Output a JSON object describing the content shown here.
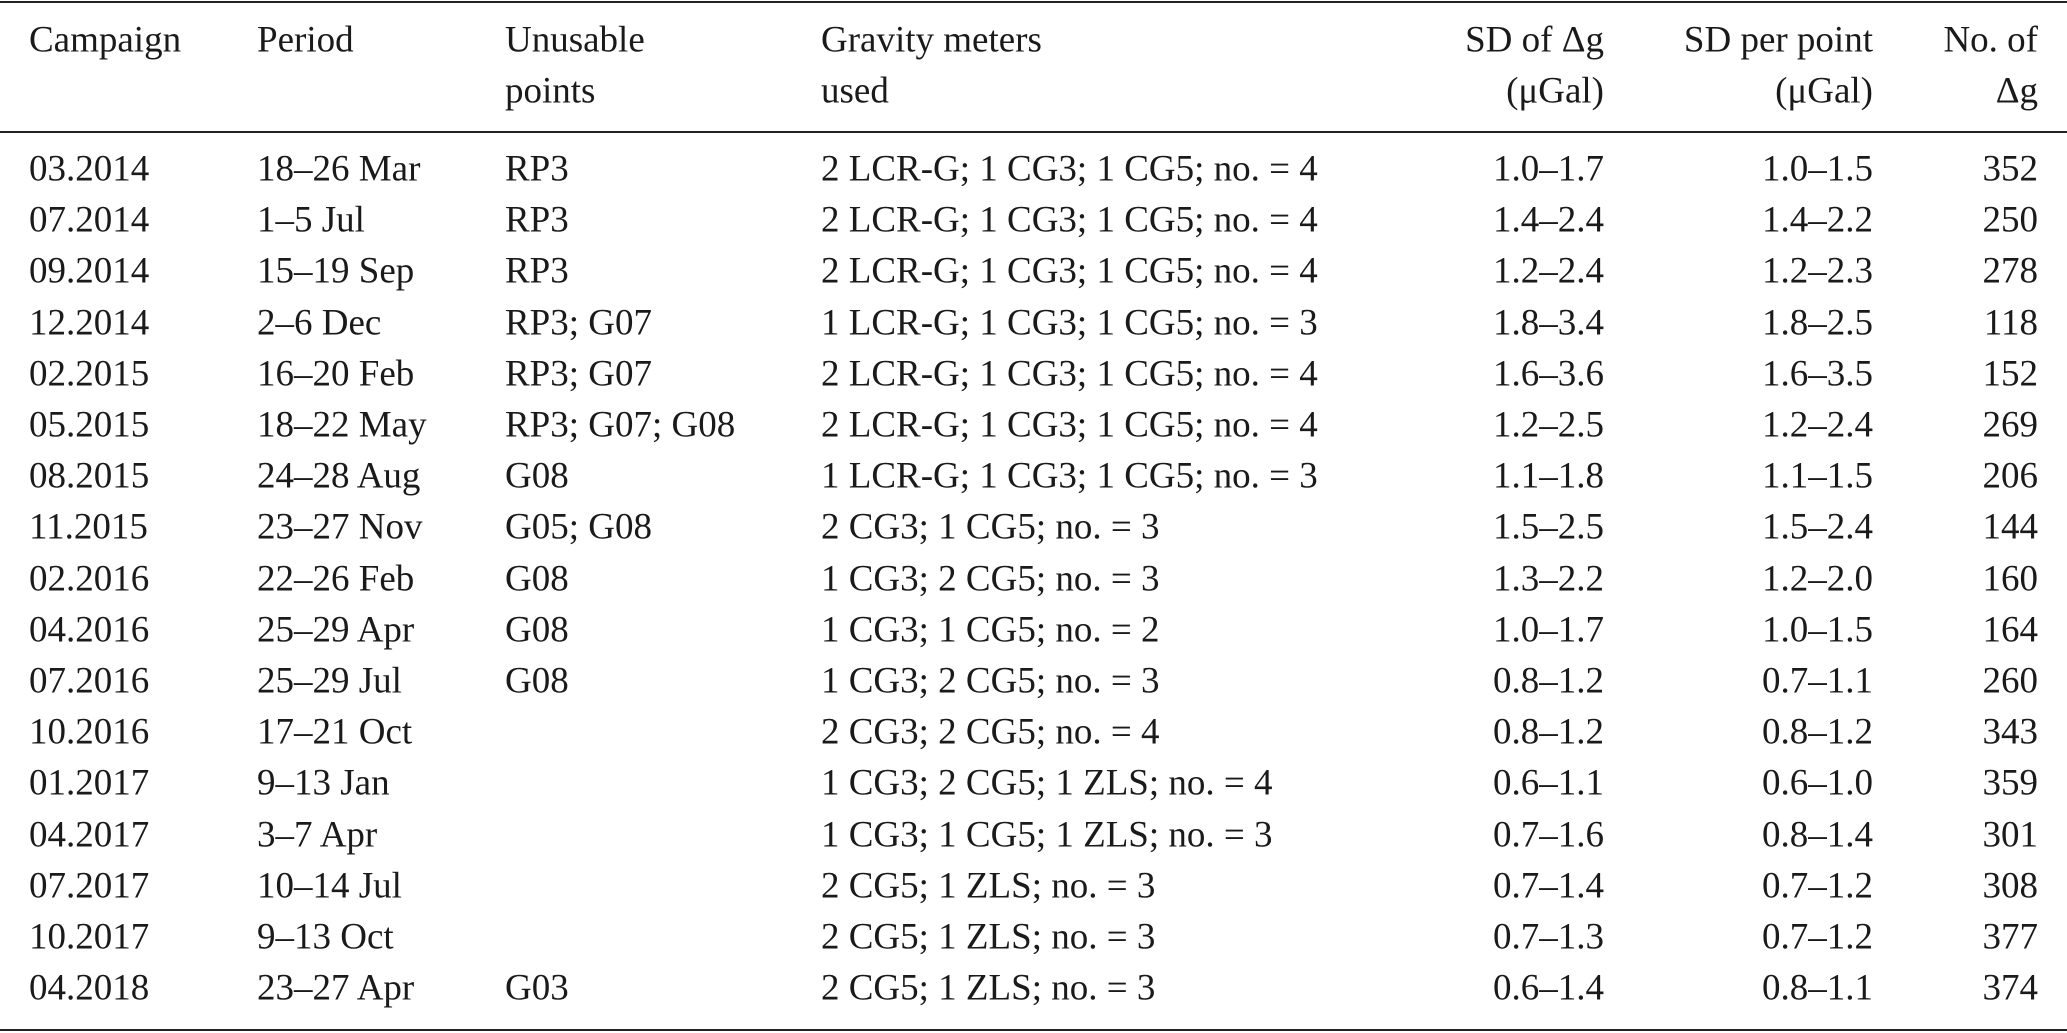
{
  "table": {
    "header": [
      [
        "Campaign"
      ],
      [
        "Period"
      ],
      [
        "Unusable",
        "points"
      ],
      [
        "Gravity meters",
        "used"
      ],
      [
        "SD of Δg",
        "(μGal)"
      ],
      [
        "SD per point",
        "(μGal)"
      ],
      [
        "No. of",
        "Δg"
      ]
    ],
    "rows": [
      [
        "03.2014",
        "18–26 Mar",
        "RP3",
        "2 LCR-G; 1 CG3; 1 CG5; no. = 4",
        "1.0–1.7",
        "1.0–1.5",
        "352"
      ],
      [
        "07.2014",
        "1–5 Jul",
        "RP3",
        "2 LCR-G; 1 CG3; 1 CG5; no. = 4",
        "1.4–2.4",
        "1.4–2.2",
        "250"
      ],
      [
        "09.2014",
        "15–19 Sep",
        "RP3",
        "2 LCR-G; 1 CG3; 1 CG5; no. = 4",
        "1.2–2.4",
        "1.2–2.3",
        "278"
      ],
      [
        "12.2014",
        "2–6 Dec",
        "RP3; G07",
        "1 LCR-G; 1 CG3; 1 CG5; no. = 3",
        "1.8–3.4",
        "1.8–2.5",
        "118"
      ],
      [
        "02.2015",
        "16–20 Feb",
        "RP3; G07",
        "2 LCR-G; 1 CG3; 1 CG5; no. = 4",
        "1.6–3.6",
        "1.6–3.5",
        "152"
      ],
      [
        "05.2015",
        "18–22 May",
        "RP3; G07; G08",
        "2 LCR-G; 1 CG3; 1 CG5; no. = 4",
        "1.2–2.5",
        "1.2–2.4",
        "269"
      ],
      [
        "08.2015",
        "24–28 Aug",
        "G08",
        "1 LCR-G; 1 CG3; 1 CG5; no. = 3",
        "1.1–1.8",
        "1.1–1.5",
        "206"
      ],
      [
        "11.2015",
        "23–27 Nov",
        "G05; G08",
        "2 CG3; 1 CG5; no. = 3",
        "1.5–2.5",
        "1.5–2.4",
        "144"
      ],
      [
        "02.2016",
        "22–26 Feb",
        "G08",
        "1 CG3; 2 CG5; no. = 3",
        "1.3–2.2",
        "1.2–2.0",
        "160"
      ],
      [
        "04.2016",
        "25–29 Apr",
        "G08",
        "1 CG3; 1 CG5; no. = 2",
        "1.0–1.7",
        "1.0–1.5",
        "164"
      ],
      [
        "07.2016",
        "25–29 Jul",
        "G08",
        "1 CG3; 2 CG5; no. = 3",
        "0.8–1.2",
        "0.7–1.1",
        "260"
      ],
      [
        "10.2016",
        "17–21 Oct",
        null,
        "2 CG3; 2 CG5; no. = 4",
        "0.8–1.2",
        "0.8–1.2",
        "343"
      ],
      [
        "01.2017",
        "9–13 Jan",
        null,
        "1 CG3; 2 CG5; 1 ZLS; no. = 4",
        "0.6–1.1",
        "0.6–1.0",
        "359"
      ],
      [
        "04.2017",
        "3–7 Apr",
        null,
        "1 CG3; 1 CG5; 1 ZLS; no. = 3",
        "0.7–1.6",
        "0.8–1.4",
        "301"
      ],
      [
        "07.2017",
        "10–14 Jul",
        null,
        "2 CG5; 1 ZLS; no. = 3",
        "0.7–1.4",
        "0.7–1.2",
        "308"
      ],
      [
        "10.2017",
        "9–13 Oct",
        null,
        "2 CG5; 1 ZLS; no. = 3",
        "0.7–1.3",
        "0.7–1.2",
        "377"
      ],
      [
        "04.2018",
        "23–27 Apr",
        "G03",
        "2 CG5; 1 ZLS; no. = 3",
        "0.6–1.4",
        "0.8–1.1",
        "374"
      ]
    ]
  }
}
